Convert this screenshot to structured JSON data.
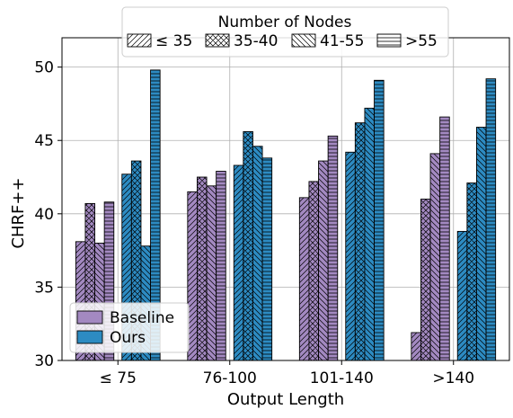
{
  "chart_data": {
    "type": "bar",
    "xlabel": "Output Length",
    "ylabel": "CHRF++",
    "ylim": [
      30,
      52
    ],
    "yticks": [
      30,
      35,
      40,
      45,
      50
    ],
    "grid": true,
    "categories": [
      "≤ 75",
      "76-100",
      "101-140",
      ">140"
    ],
    "node_groups": {
      "title": "Number of Nodes",
      "labels": [
        "≤ 35",
        "35-40",
        "41-55",
        ">55"
      ],
      "hatches": [
        "forward-diagonal",
        "crosshatch",
        "back-diagonal",
        "horizontal"
      ]
    },
    "series": [
      {
        "name": "Baseline",
        "color": "#a389c1",
        "values": [
          [
            38.1,
            40.7,
            38.0,
            40.8
          ],
          [
            41.5,
            42.5,
            41.9,
            42.9
          ],
          [
            41.1,
            42.2,
            43.6,
            45.3
          ],
          [
            31.9,
            41.0,
            44.1,
            46.6
          ]
        ]
      },
      {
        "name": "Ours",
        "color": "#2d8bc2",
        "values": [
          [
            42.7,
            43.6,
            37.8,
            49.8
          ],
          [
            43.3,
            45.6,
            44.6,
            43.8
          ],
          [
            44.2,
            46.2,
            47.2,
            49.1
          ],
          [
            38.8,
            42.1,
            45.9,
            49.2
          ]
        ]
      }
    ],
    "legend_series_position": "lower-left",
    "legend_nodes_position": "top-center"
  }
}
